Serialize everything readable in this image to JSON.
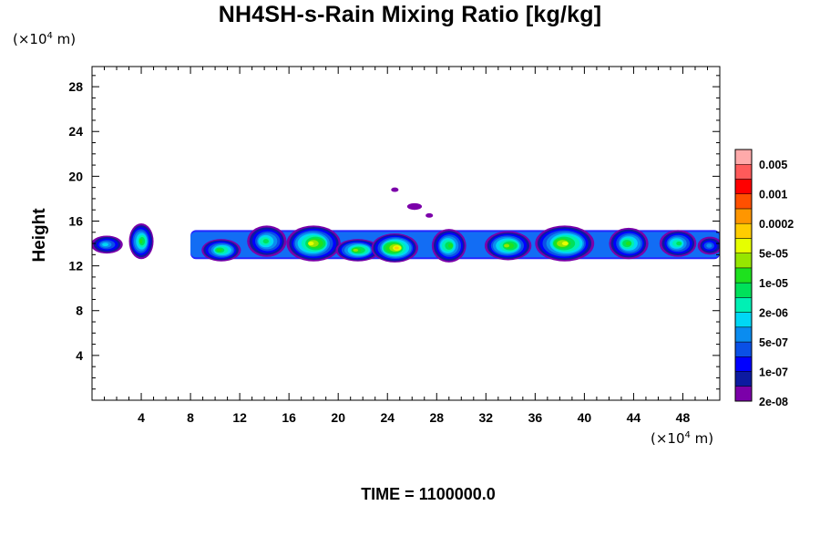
{
  "title": "NH4SH-s-Rain Mixing Ratio [kg/kg]",
  "time_label": "TIME = 1100000.0",
  "y_unit": {
    "prefix": "(×10",
    "exp": "4",
    "suffix": " m)"
  },
  "x_unit": {
    "prefix": "(×10",
    "exp": "4",
    "suffix": " m)"
  },
  "colors": {
    "scale": [
      "#7b00a9",
      "#0c1aa0",
      "#0000ff",
      "#0a50e6",
      "#0a8cf0",
      "#00d7f5",
      "#00f0b4",
      "#00e15a",
      "#1ee11e",
      "#96e600",
      "#e6ff00",
      "#ffcd00",
      "#ff9600",
      "#ff5000",
      "#ff0000",
      "#ff5a5a",
      "#ffaaaa"
    ]
  },
  "chart_data": {
    "type": "heatmap",
    "title": "NH4SH-s-Rain Mixing Ratio [kg/kg]",
    "ylabel": "Height",
    "xlabel": "",
    "xlim": [
      0,
      51
    ],
    "ylim": [
      0,
      29.8
    ],
    "x_ticks": [
      4,
      8,
      12,
      16,
      20,
      24,
      28,
      32,
      36,
      40,
      44,
      48
    ],
    "y_ticks": [
      4,
      8,
      12,
      16,
      20,
      24,
      28
    ],
    "colorbar": {
      "labels": [
        "0.005",
        "0.001",
        "0.0002",
        "5e-05",
        "1e-05",
        "2e-06",
        "5e-07",
        "1e-07",
        "2e-08"
      ],
      "position": "right"
    },
    "cells": [
      {
        "x": 1.2,
        "y": 13.9,
        "rx": 1.3,
        "ry": 0.8,
        "peak": 5
      },
      {
        "x": 4.0,
        "y": 14.2,
        "rx": 1.0,
        "ry": 1.6,
        "peak": 8
      },
      {
        "x": 10.5,
        "y": 13.4,
        "rx": 1.6,
        "ry": 1.0,
        "peak": 8
      },
      {
        "x": 14.2,
        "y": 14.2,
        "rx": 1.6,
        "ry": 1.4,
        "peak": 7
      },
      {
        "x": 18.0,
        "y": 14.0,
        "rx": 2.2,
        "ry": 1.6,
        "peak": 10
      },
      {
        "x": 21.6,
        "y": 13.4,
        "rx": 1.8,
        "ry": 1.0,
        "peak": 9
      },
      {
        "x": 24.6,
        "y": 13.6,
        "rx": 1.9,
        "ry": 1.3,
        "peak": 11
      },
      {
        "x": 29.0,
        "y": 13.8,
        "rx": 1.4,
        "ry": 1.5,
        "peak": 8
      },
      {
        "x": 33.8,
        "y": 13.8,
        "rx": 1.9,
        "ry": 1.3,
        "peak": 9
      },
      {
        "x": 38.4,
        "y": 14.0,
        "rx": 2.4,
        "ry": 1.6,
        "peak": 10
      },
      {
        "x": 43.6,
        "y": 14.0,
        "rx": 1.6,
        "ry": 1.4,
        "peak": 8
      },
      {
        "x": 47.6,
        "y": 14.0,
        "rx": 1.5,
        "ry": 1.2,
        "peak": 7
      },
      {
        "x": 50.2,
        "y": 13.8,
        "rx": 1.0,
        "ry": 0.8,
        "peak": 4
      }
    ],
    "band": {
      "x": [
        8.0,
        51.0
      ],
      "y": [
        12.6,
        15.2
      ]
    },
    "fragments": [
      {
        "x": 24.6,
        "y": 18.8,
        "rx": 0.3,
        "ry": 0.2
      },
      {
        "x": 26.2,
        "y": 17.3,
        "rx": 0.6,
        "ry": 0.3
      },
      {
        "x": 27.4,
        "y": 16.5,
        "rx": 0.3,
        "ry": 0.2
      }
    ]
  }
}
